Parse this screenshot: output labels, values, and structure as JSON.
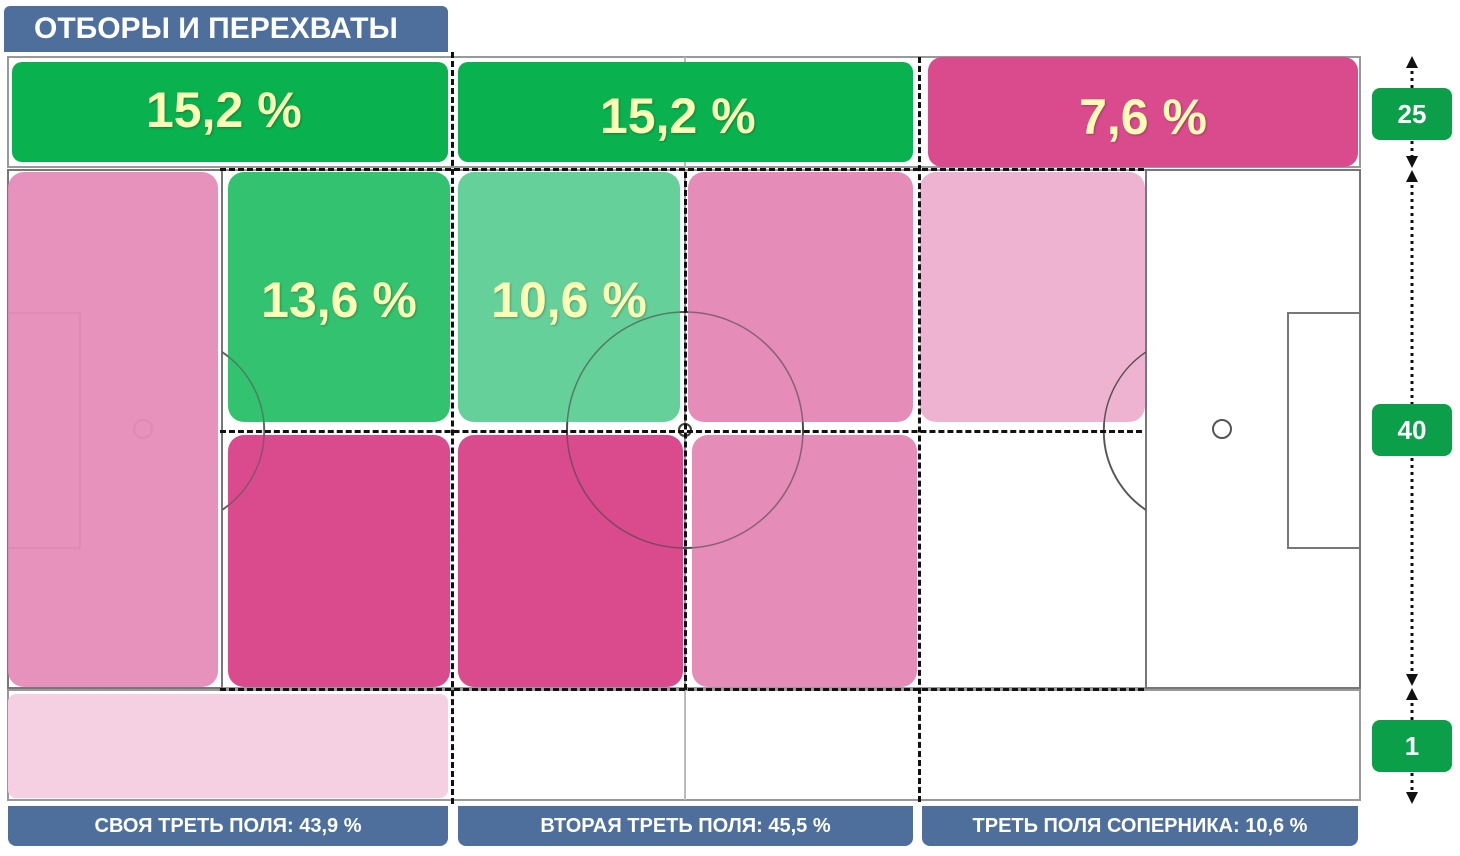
{
  "title": "ОТБОРЫ И ПЕРЕХВАТЫ",
  "colors": {
    "green_dark": "#0ab14f",
    "green_mid": "#33c270",
    "green_light": "#66d09a",
    "pink_dark": "#da4b8e",
    "pink_mid": "#e68cb8",
    "pink_light": "#efb3d2",
    "pink_pale": "#f5cfe2",
    "header_blue": "#4e6f9c"
  },
  "zones": {
    "top_left": "15,2 %",
    "top_mid": "15,2 %",
    "top_right": "7,6 %",
    "center_upper_left": "13,6 %",
    "center_upper_mid": "10,6 %"
  },
  "side_widths": {
    "top": "25",
    "middle": "40",
    "bottom": "1"
  },
  "thirds": {
    "own": "СВОЯ ТРЕТЬ ПОЛЯ: 43,9 %",
    "second": "ВТОРАЯ ТРЕТЬ ПОЛЯ: 45,5 %",
    "opponent": "ТРЕТЬ ПОЛЯ СОПЕРНИКА: 10,6 %"
  }
}
